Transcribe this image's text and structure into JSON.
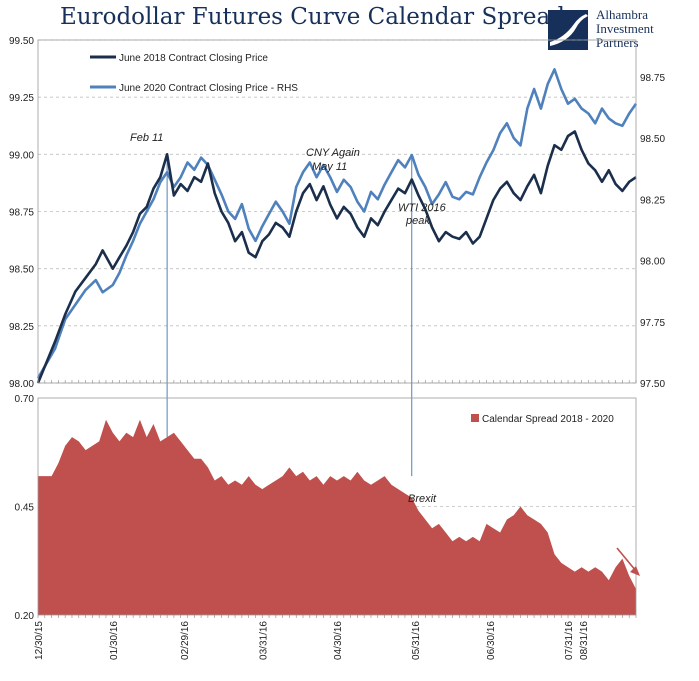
{
  "header": {
    "title": "Eurodollar Futures Curve Calendar Spread",
    "logo_lines": [
      "Alhambra",
      "Investment",
      "Partners"
    ]
  },
  "colors": {
    "june2018": "#1b2f4c",
    "june2020": "#4f81bd",
    "spread": "#c0504d",
    "grid": "#bfbfbf",
    "annotation_line": "#4f81bd",
    "arrow": "#c0504d"
  },
  "chart_data": [
    {
      "type": "line",
      "title": "",
      "x_ticks": [
        "12/30/15",
        "01/30/16",
        "02/29/16",
        "03/31/16",
        "04/30/16",
        "05/31/16",
        "06/30/16",
        "07/31/16",
        "08/31/16"
      ],
      "x_range": [
        0,
        176
      ],
      "y_left": {
        "ylim": [
          98.0,
          99.5
        ],
        "ticks": [
          "98.00",
          "98.25",
          "98.50",
          "98.75",
          "99.00",
          "99.25",
          "99.50"
        ]
      },
      "y_right": {
        "ylim": [
          97.5,
          98.9
        ],
        "ticks": [
          "97.50",
          "97.75",
          "98.00",
          "98.25",
          "98.50",
          "98.75"
        ]
      },
      "grid": true,
      "legend_position": "top-left",
      "series": [
        {
          "name": "June 2018 Contract Closing Price",
          "axis": "left",
          "points": [
            [
              0,
              98.0
            ],
            [
              5,
              98.18
            ],
            [
              8,
              98.3
            ],
            [
              11,
              98.4
            ],
            [
              14,
              98.46
            ],
            [
              17,
              98.52
            ],
            [
              19,
              98.58
            ],
            [
              22,
              98.5
            ],
            [
              24,
              98.55
            ],
            [
              26,
              98.6
            ],
            [
              28,
              98.66
            ],
            [
              30,
              98.74
            ],
            [
              32,
              98.77
            ],
            [
              34,
              98.85
            ],
            [
              36,
              98.9
            ],
            [
              38,
              99.0
            ],
            [
              40,
              98.82
            ],
            [
              42,
              98.87
            ],
            [
              44,
              98.84
            ],
            [
              46,
              98.9
            ],
            [
              48,
              98.88
            ],
            [
              50,
              98.96
            ],
            [
              52,
              98.83
            ],
            [
              54,
              98.75
            ],
            [
              56,
              98.7
            ],
            [
              58,
              98.62
            ],
            [
              60,
              98.66
            ],
            [
              62,
              98.57
            ],
            [
              64,
              98.55
            ],
            [
              66,
              98.62
            ],
            [
              68,
              98.65
            ],
            [
              70,
              98.7
            ],
            [
              72,
              98.68
            ],
            [
              74,
              98.64
            ],
            [
              76,
              98.75
            ],
            [
              78,
              98.83
            ],
            [
              80,
              98.87
            ],
            [
              82,
              98.8
            ],
            [
              84,
              98.86
            ],
            [
              86,
              98.78
            ],
            [
              88,
              98.72
            ],
            [
              90,
              98.77
            ],
            [
              92,
              98.74
            ],
            [
              94,
              98.68
            ],
            [
              96,
              98.64
            ],
            [
              98,
              98.72
            ],
            [
              100,
              98.69
            ],
            [
              102,
              98.75
            ],
            [
              104,
              98.8
            ],
            [
              106,
              98.85
            ],
            [
              108,
              98.83
            ],
            [
              110,
              98.89
            ],
            [
              112,
              98.82
            ],
            [
              114,
              98.76
            ],
            [
              116,
              98.68
            ],
            [
              118,
              98.62
            ],
            [
              120,
              98.66
            ],
            [
              122,
              98.64
            ],
            [
              124,
              98.63
            ],
            [
              126,
              98.66
            ],
            [
              128,
              98.61
            ],
            [
              130,
              98.64
            ],
            [
              132,
              98.72
            ],
            [
              134,
              98.8
            ],
            [
              136,
              98.85
            ],
            [
              138,
              98.88
            ],
            [
              140,
              98.83
            ],
            [
              142,
              98.8
            ],
            [
              144,
              98.86
            ],
            [
              146,
              98.91
            ],
            [
              148,
              98.83
            ],
            [
              150,
              98.95
            ],
            [
              152,
              99.04
            ],
            [
              154,
              99.02
            ],
            [
              156,
              99.08
            ],
            [
              158,
              99.1
            ],
            [
              160,
              99.02
            ],
            [
              162,
              98.96
            ],
            [
              164,
              98.93
            ],
            [
              166,
              98.88
            ],
            [
              168,
              98.93
            ],
            [
              170,
              98.87
            ],
            [
              172,
              98.84
            ],
            [
              174,
              98.88
            ],
            [
              176,
              98.9
            ]
          ]
        },
        {
          "name": "June 2020 Contract Closing Price - RHS",
          "axis": "right",
          "points": [
            [
              0,
              97.52
            ],
            [
              5,
              97.64
            ],
            [
              8,
              97.76
            ],
            [
              11,
              97.82
            ],
            [
              14,
              97.88
            ],
            [
              17,
              97.92
            ],
            [
              19,
              97.87
            ],
            [
              22,
              97.9
            ],
            [
              24,
              97.95
            ],
            [
              26,
              98.02
            ],
            [
              28,
              98.08
            ],
            [
              30,
              98.15
            ],
            [
              32,
              98.2
            ],
            [
              34,
              98.25
            ],
            [
              36,
              98.32
            ],
            [
              38,
              98.36
            ],
            [
              40,
              98.3
            ],
            [
              42,
              98.34
            ],
            [
              44,
              98.4
            ],
            [
              46,
              98.37
            ],
            [
              48,
              98.42
            ],
            [
              50,
              98.39
            ],
            [
              52,
              98.33
            ],
            [
              54,
              98.27
            ],
            [
              56,
              98.2
            ],
            [
              58,
              98.17
            ],
            [
              60,
              98.23
            ],
            [
              62,
              98.13
            ],
            [
              64,
              98.08
            ],
            [
              66,
              98.14
            ],
            [
              68,
              98.19
            ],
            [
              70,
              98.24
            ],
            [
              72,
              98.2
            ],
            [
              74,
              98.15
            ],
            [
              76,
              98.3
            ],
            [
              78,
              98.36
            ],
            [
              80,
              98.4
            ],
            [
              82,
              98.34
            ],
            [
              84,
              98.39
            ],
            [
              86,
              98.34
            ],
            [
              88,
              98.28
            ],
            [
              90,
              98.33
            ],
            [
              92,
              98.3
            ],
            [
              94,
              98.24
            ],
            [
              96,
              98.2
            ],
            [
              98,
              98.28
            ],
            [
              100,
              98.25
            ],
            [
              102,
              98.31
            ],
            [
              104,
              98.36
            ],
            [
              106,
              98.41
            ],
            [
              108,
              98.38
            ],
            [
              110,
              98.43
            ],
            [
              112,
              98.35
            ],
            [
              114,
              98.3
            ],
            [
              116,
              98.23
            ],
            [
              118,
              98.27
            ],
            [
              120,
              98.32
            ],
            [
              122,
              98.26
            ],
            [
              124,
              98.25
            ],
            [
              126,
              98.28
            ],
            [
              128,
              98.27
            ],
            [
              130,
              98.34
            ],
            [
              132,
              98.4
            ],
            [
              134,
              98.45
            ],
            [
              136,
              98.52
            ],
            [
              138,
              98.56
            ],
            [
              140,
              98.5
            ],
            [
              142,
              98.47
            ],
            [
              144,
              98.62
            ],
            [
              146,
              98.7
            ],
            [
              148,
              98.62
            ],
            [
              150,
              98.72
            ],
            [
              152,
              98.78
            ],
            [
              154,
              98.7
            ],
            [
              156,
              98.64
            ],
            [
              158,
              98.66
            ],
            [
              160,
              98.62
            ],
            [
              162,
              98.6
            ],
            [
              164,
              98.56
            ],
            [
              166,
              98.62
            ],
            [
              168,
              98.58
            ],
            [
              170,
              98.56
            ],
            [
              172,
              98.55
            ],
            [
              174,
              98.6
            ],
            [
              176,
              98.64
            ]
          ]
        }
      ],
      "annotations": [
        "Feb 11",
        "CNY Again",
        "May 11",
        "WTI 2016",
        "peak"
      ]
    },
    {
      "type": "area",
      "title": "",
      "x_ticks": [
        "12/30/15",
        "01/30/16",
        "02/29/16",
        "03/31/16",
        "04/30/16",
        "05/31/16",
        "06/30/16",
        "07/31/16",
        "08/31/16"
      ],
      "x_range": [
        0,
        176
      ],
      "ylim": [
        0.2,
        0.7
      ],
      "y_ticks": [
        "0.20",
        "0.45",
        "0.70"
      ],
      "legend_position": "top-right",
      "series": [
        {
          "name": "Calendar Spread 2018 - 2020",
          "points": [
            [
              0,
              0.52
            ],
            [
              4,
              0.52
            ],
            [
              6,
              0.55
            ],
            [
              8,
              0.59
            ],
            [
              10,
              0.61
            ],
            [
              12,
              0.6
            ],
            [
              14,
              0.58
            ],
            [
              16,
              0.59
            ],
            [
              18,
              0.6
            ],
            [
              20,
              0.65
            ],
            [
              22,
              0.62
            ],
            [
              24,
              0.6
            ],
            [
              26,
              0.62
            ],
            [
              28,
              0.61
            ],
            [
              30,
              0.65
            ],
            [
              32,
              0.61
            ],
            [
              34,
              0.64
            ],
            [
              36,
              0.6
            ],
            [
              38,
              0.61
            ],
            [
              40,
              0.62
            ],
            [
              42,
              0.6
            ],
            [
              44,
              0.58
            ],
            [
              46,
              0.56
            ],
            [
              48,
              0.56
            ],
            [
              50,
              0.54
            ],
            [
              52,
              0.51
            ],
            [
              54,
              0.52
            ],
            [
              56,
              0.5
            ],
            [
              58,
              0.51
            ],
            [
              60,
              0.5
            ],
            [
              62,
              0.52
            ],
            [
              64,
              0.5
            ],
            [
              66,
              0.49
            ],
            [
              68,
              0.5
            ],
            [
              70,
              0.51
            ],
            [
              72,
              0.52
            ],
            [
              74,
              0.54
            ],
            [
              76,
              0.52
            ],
            [
              78,
              0.53
            ],
            [
              80,
              0.51
            ],
            [
              82,
              0.52
            ],
            [
              84,
              0.5
            ],
            [
              86,
              0.52
            ],
            [
              88,
              0.51
            ],
            [
              90,
              0.52
            ],
            [
              92,
              0.51
            ],
            [
              94,
              0.53
            ],
            [
              96,
              0.51
            ],
            [
              98,
              0.5
            ],
            [
              100,
              0.51
            ],
            [
              102,
              0.52
            ],
            [
              104,
              0.5
            ],
            [
              106,
              0.49
            ],
            [
              108,
              0.48
            ],
            [
              110,
              0.47
            ],
            [
              112,
              0.44
            ],
            [
              114,
              0.42
            ],
            [
              116,
              0.4
            ],
            [
              118,
              0.41
            ],
            [
              120,
              0.39
            ],
            [
              122,
              0.37
            ],
            [
              124,
              0.38
            ],
            [
              126,
              0.37
            ],
            [
              128,
              0.38
            ],
            [
              130,
              0.37
            ],
            [
              132,
              0.41
            ],
            [
              134,
              0.4
            ],
            [
              136,
              0.39
            ],
            [
              138,
              0.42
            ],
            [
              140,
              0.43
            ],
            [
              142,
              0.45
            ],
            [
              144,
              0.43
            ],
            [
              146,
              0.42
            ],
            [
              148,
              0.41
            ],
            [
              150,
              0.39
            ],
            [
              152,
              0.34
            ],
            [
              154,
              0.32
            ],
            [
              156,
              0.31
            ],
            [
              158,
              0.3
            ],
            [
              160,
              0.31
            ],
            [
              162,
              0.3
            ],
            [
              164,
              0.31
            ],
            [
              166,
              0.3
            ],
            [
              168,
              0.28
            ],
            [
              170,
              0.31
            ],
            [
              172,
              0.33
            ],
            [
              174,
              0.29
            ],
            [
              176,
              0.26
            ]
          ]
        }
      ],
      "annotations": [
        "Brexit"
      ]
    }
  ]
}
